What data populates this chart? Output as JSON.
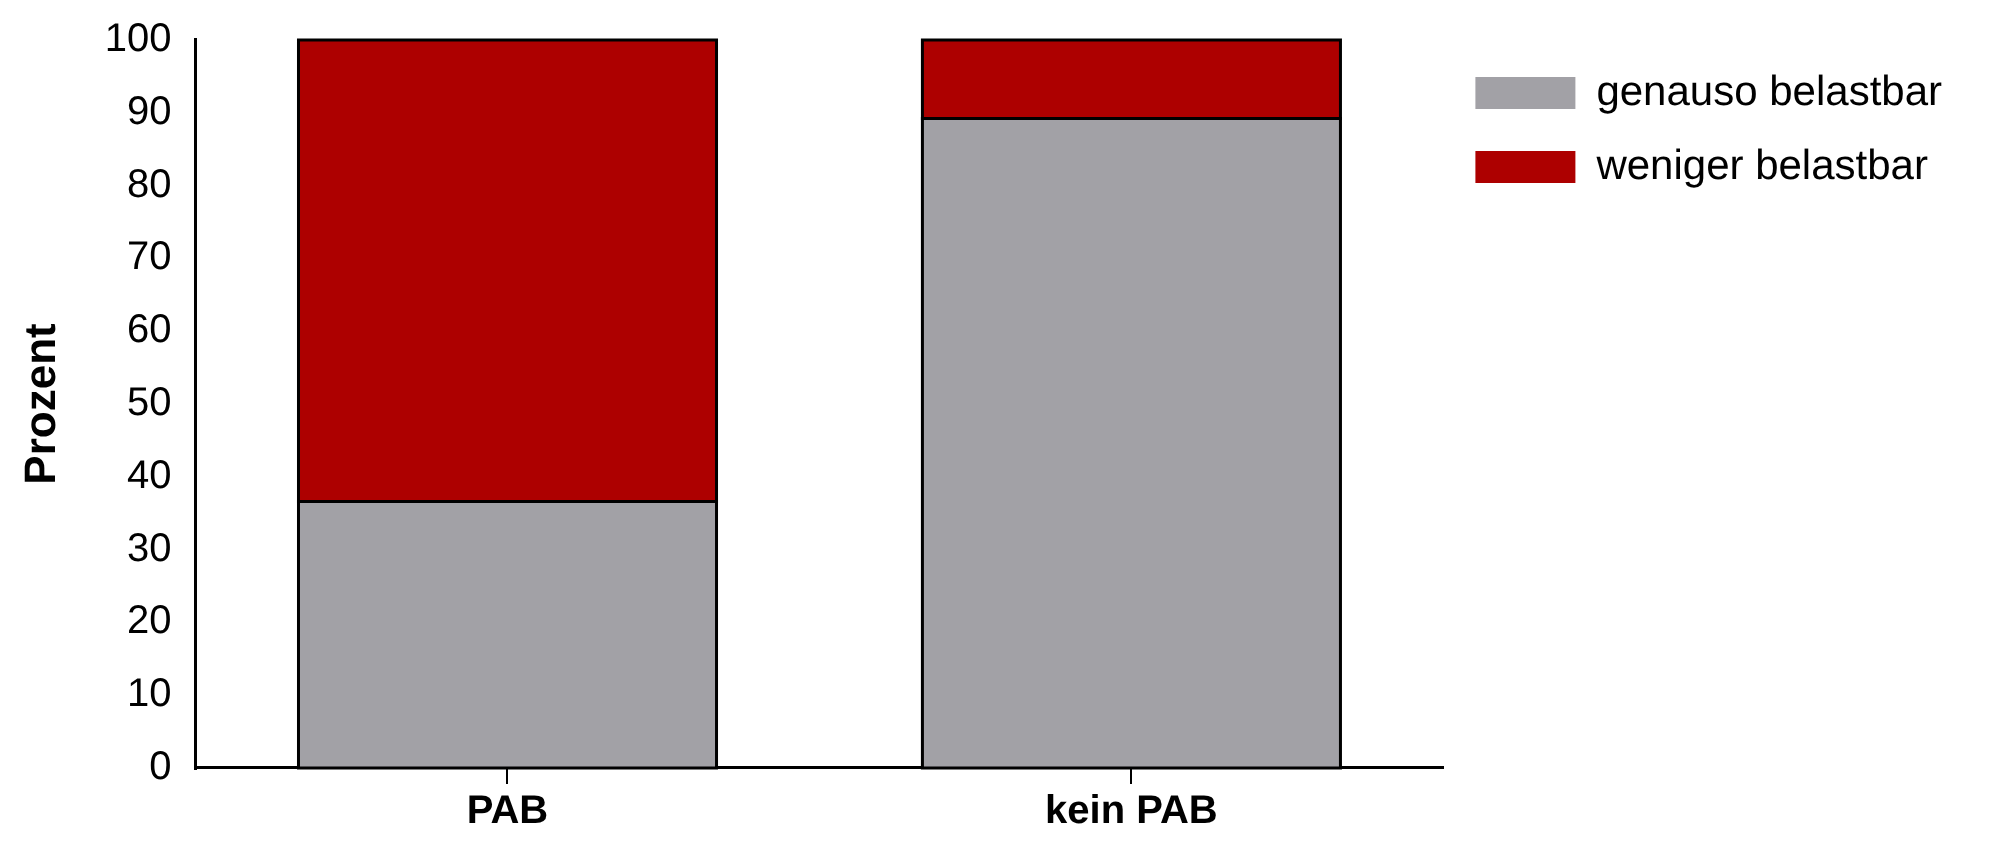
{
  "chart_data": {
    "type": "bar",
    "stacked": true,
    "ylabel": "Prozent",
    "categories": [
      "PAB",
      "kein PAB"
    ],
    "series": [
      {
        "name": "genauso belastbar",
        "color": "#a2a1a6",
        "values": [
          36.6,
          89.2
        ]
      },
      {
        "name": "weniger belastbar",
        "color": "#ad0000",
        "values": [
          63.4,
          10.8
        ]
      }
    ],
    "ylim": [
      0,
      100
    ],
    "yticks": [
      0,
      10,
      20,
      30,
      40,
      50,
      60,
      70,
      80,
      90,
      100
    ],
    "grid": false,
    "legend": "top right"
  }
}
